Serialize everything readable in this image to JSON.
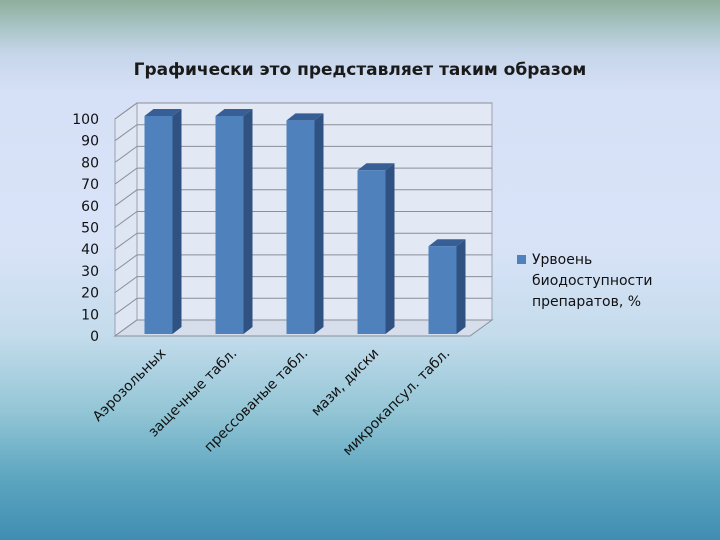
{
  "chart_data": {
    "type": "bar",
    "style": "3d",
    "title": "Графически это представляет таким образом",
    "categories": [
      "Аэрозольных",
      "защечные табл.",
      "прессованые табл.",
      "мази, диски",
      "микрокапсул. табл."
    ],
    "series": [
      {
        "name": "Урвоень биодоступности препаратов, %",
        "values": [
          100,
          100,
          98,
          75,
          40
        ],
        "color": "#4f81bd"
      }
    ],
    "ylim": [
      0,
      100
    ],
    "yticks": [
      0,
      10,
      20,
      30,
      40,
      50,
      60,
      70,
      80,
      90,
      100
    ],
    "grid": true,
    "legend": {
      "position": "right",
      "lines": [
        "Урвоень",
        "биодоступности",
        "препаратов, %"
      ]
    }
  }
}
